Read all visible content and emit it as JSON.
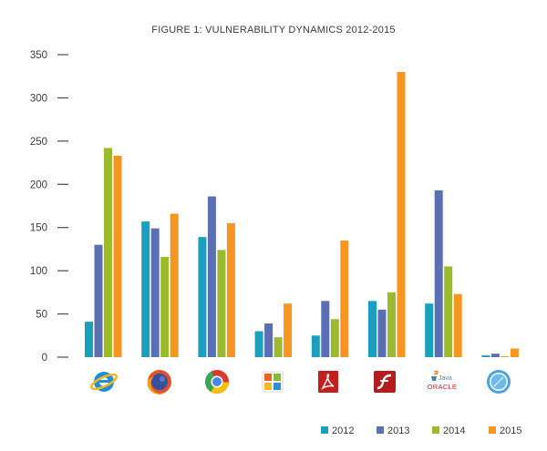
{
  "chart_data": {
    "type": "bar",
    "title": "FIGURE 1: VULNERABILITY DYNAMICS 2012-2015",
    "xlabel": "",
    "ylabel": "",
    "ylim": [
      0,
      350
    ],
    "yticks": [
      0,
      50,
      100,
      150,
      200,
      250,
      300,
      350
    ],
    "grid": false,
    "legend_position": "bottom-right",
    "categories": [
      "internet-explorer-icon",
      "firefox-icon",
      "chrome-icon",
      "office-icon",
      "adobe-reader-icon",
      "flash-icon",
      "oracle-java-icon",
      "safari-icon"
    ],
    "category_icon_text": {
      "oracle_java": [
        "Java",
        "ORACLE"
      ]
    },
    "series": [
      {
        "name": "2012",
        "color": "#1a9fbd",
        "values": [
          41,
          157,
          139,
          30,
          25,
          65,
          62,
          2
        ]
      },
      {
        "name": "2013",
        "color": "#5b6fb3",
        "values": [
          130,
          149,
          186,
          39,
          65,
          55,
          193,
          4
        ]
      },
      {
        "name": "2014",
        "color": "#9bbb2c",
        "values": [
          242,
          116,
          124,
          23,
          44,
          75,
          105,
          1
        ]
      },
      {
        "name": "2015",
        "color": "#f5961e",
        "values": [
          233,
          166,
          155,
          62,
          135,
          330,
          73,
          10
        ]
      }
    ]
  }
}
